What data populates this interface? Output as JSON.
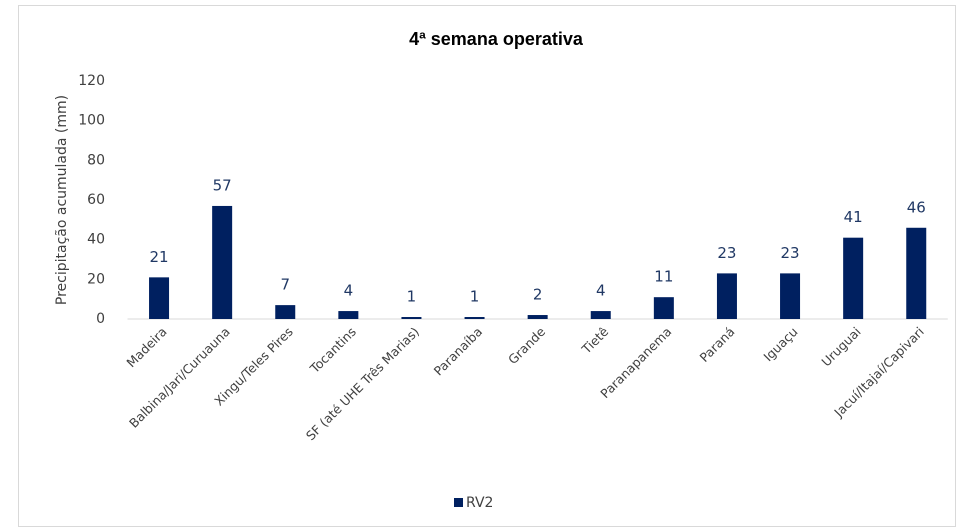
{
  "chart_data": {
    "type": "bar",
    "title": "4ª semana operativa",
    "y_label": "Precipitação acumulada (mm)",
    "categories": [
      "Madeira",
      "Balbina/Jari/Curuauna",
      "Xingu/Teles Pires",
      "Tocantins",
      "SF (até UHE Três Marias)",
      "Paranaíba",
      "Grande",
      "Tietê",
      "Paranapanema",
      "Paraná",
      "Iguaçu",
      "Uruguai",
      "Jacuí/Itajaí/Capivari"
    ],
    "series": [
      {
        "name": "RV2",
        "color": "#002060",
        "values": [
          21,
          57,
          7,
          4,
          1,
          1,
          2,
          4,
          11,
          23,
          23,
          41,
          46
        ]
      }
    ],
    "ylim": [
      0,
      120
    ],
    "yticks": [
      0,
      20,
      40,
      60,
      80,
      100,
      120
    ],
    "grid": false,
    "legend": "bottom"
  }
}
